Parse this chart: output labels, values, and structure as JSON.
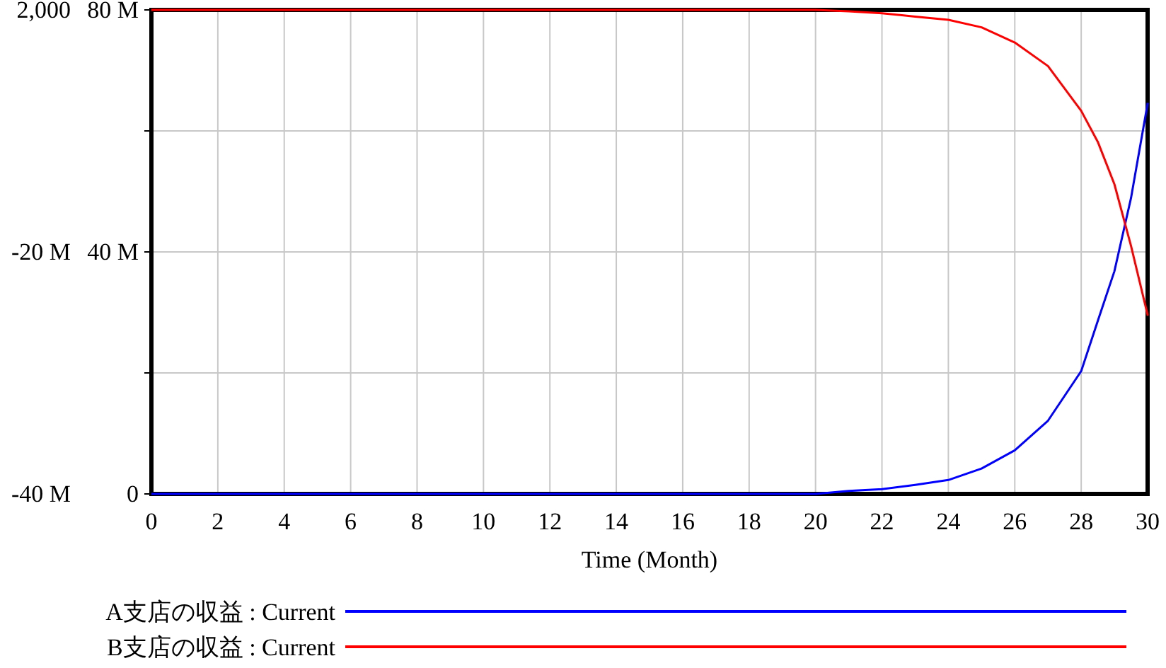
{
  "chart_data": {
    "type": "line",
    "xlabel": "Time (Month)",
    "x": [
      0,
      1,
      2,
      3,
      4,
      5,
      6,
      7,
      8,
      9,
      10,
      11,
      12,
      13,
      14,
      15,
      16,
      17,
      18,
      19,
      20,
      21,
      22,
      23,
      24,
      25,
      26,
      27,
      28,
      28.5,
      29,
      29.5,
      30
    ],
    "xlim": [
      0,
      30
    ],
    "xticks": [
      0,
      2,
      4,
      6,
      8,
      10,
      12,
      14,
      16,
      18,
      20,
      22,
      24,
      26,
      28,
      30
    ],
    "ylim": [
      0,
      80000000
    ],
    "yticks": [
      {
        "value": 0,
        "label": "0"
      },
      {
        "value": 20000000,
        "label": null
      },
      {
        "value": 40000000,
        "label": "40 M"
      },
      {
        "value": 60000000,
        "label": null
      },
      {
        "value": 80000000,
        "label": "80 M"
      }
    ],
    "y2lim": [
      -40000000,
      2000
    ],
    "y2ticks": [
      {
        "value": -40000000,
        "label": "-40 M"
      },
      {
        "value": -19999000,
        "label": "-20 M"
      },
      {
        "value": 2000,
        "label": "2,000"
      }
    ],
    "grid": true,
    "legend": "bottom",
    "marker": "none",
    "line_style": "solid",
    "series": [
      {
        "name": "A支店の収益 : Current",
        "color": "#0000ff",
        "values": [
          0,
          0,
          0,
          0,
          0,
          0,
          0,
          0,
          0,
          0,
          0,
          0,
          0,
          0,
          0,
          0,
          0,
          0,
          0,
          0,
          0,
          500000,
          800000,
          1500000,
          2300000,
          4200000,
          7200000,
          12100000,
          20300000,
          28600000,
          36800000,
          48900000,
          64500000
        ]
      },
      {
        "name": "B支店の収益 : Current",
        "color": "#ff0000",
        "axis": "y2",
        "values": [
          2000,
          2000,
          2000,
          2000,
          2000,
          2000,
          2000,
          2000,
          2000,
          2000,
          2000,
          2000,
          2000,
          2000,
          2000,
          2000,
          2000,
          2000,
          2000,
          2000,
          2000,
          -110000,
          -270000,
          -550000,
          -820000,
          -1440000,
          -2690000,
          -4640000,
          -8340000,
          -10900000,
          -14400000,
          -19500000,
          -25200000
        ]
      }
    ]
  }
}
